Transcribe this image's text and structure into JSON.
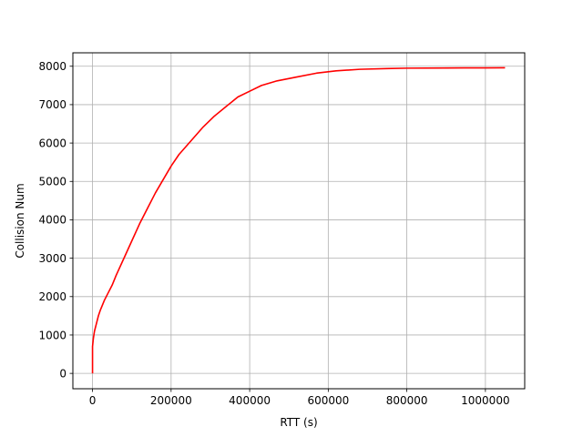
{
  "chart_data": {
    "type": "line",
    "title": "",
    "xlabel": "RTT (s)",
    "ylabel": "Collision Num",
    "xlim": [
      -50000,
      1100000
    ],
    "ylim": [
      -400,
      8350
    ],
    "xticks": [
      0,
      200000,
      400000,
      600000,
      800000,
      1000000
    ],
    "yticks": [
      0,
      1000,
      2000,
      3000,
      4000,
      5000,
      6000,
      7000,
      8000
    ],
    "grid": true,
    "legend": "none",
    "series": [
      {
        "color": "#ff0000",
        "x": [
          0,
          0,
          2000,
          5000,
          10000,
          15000,
          20000,
          30000,
          40000,
          50000,
          60000,
          80000,
          100000,
          120000,
          140000,
          160000,
          180000,
          200000,
          220000,
          250000,
          280000,
          310000,
          340000,
          370000,
          400000,
          430000,
          470000,
          520000,
          570000,
          620000,
          680000,
          750000,
          800000,
          900000,
          1000000,
          1050000
        ],
        "y": [
          0,
          700,
          900,
          1100,
          1300,
          1500,
          1650,
          1900,
          2100,
          2300,
          2550,
          3000,
          3450,
          3900,
          4300,
          4700,
          5050,
          5400,
          5700,
          6050,
          6400,
          6700,
          6950,
          7200,
          7350,
          7500,
          7620,
          7720,
          7820,
          7880,
          7920,
          7940,
          7950,
          7955,
          7958,
          7960
        ]
      }
    ]
  }
}
